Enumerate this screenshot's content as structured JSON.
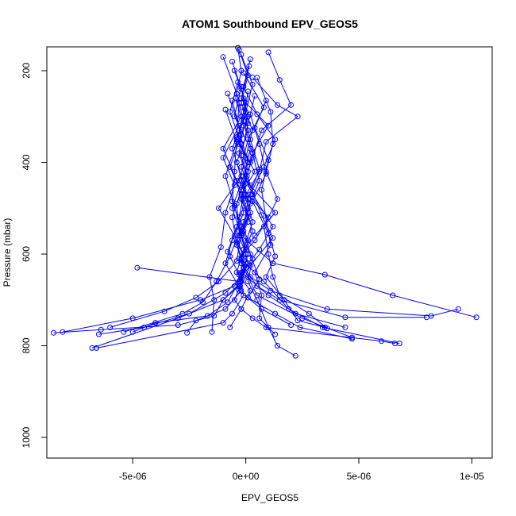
{
  "chart_data": {
    "type": "line",
    "title": "ATOM1 Southbound EPV_GEOS5",
    "xlabel": "EPV_GEOS5",
    "ylabel": "Pressure (mbar)",
    "xlim": [
      -8.8e-06,
      1.09e-05
    ],
    "ylim": [
      1045,
      148
    ],
    "y_reversed": true,
    "x_ticks": [
      {
        "value": -5e-06,
        "label": "-5e-06"
      },
      {
        "value": 0,
        "label": "0e+00"
      },
      {
        "value": 5e-06,
        "label": "5e-06"
      },
      {
        "value": 1e-05,
        "label": "1e-05"
      }
    ],
    "y_ticks": [
      {
        "value": 200,
        "label": "200"
      },
      {
        "value": 400,
        "label": "400"
      },
      {
        "value": 600,
        "label": "600"
      },
      {
        "value": 800,
        "label": "800"
      },
      {
        "value": 1000,
        "label": "1000"
      }
    ],
    "series_color": "#0000ff",
    "marker": "open-circle",
    "series": [
      {
        "x": [
          -3.5e-07,
          -2e-07,
          -4.5e-07,
          -1e-07,
          -3e-07,
          5e-08,
          -2e-07,
          1e-07,
          -3e-07,
          0,
          -1.5e-07,
          -2.5e-07,
          -5e-07,
          -2e-07,
          3e-07,
          9e-07,
          6e-06,
          6.6e-06
        ],
        "y": [
          150,
          200,
          260,
          320,
          380,
          430,
          480,
          520,
          560,
          600,
          640,
          670,
          700,
          720,
          740,
          760,
          790,
          795
        ]
      },
      {
        "x": [
          -3e-07,
          1e-07,
          -2e-07,
          3e-07,
          0,
          -3e-07,
          2e-07,
          -1e-07,
          -4e-07,
          1e-07,
          -2e-07,
          -1e-06,
          -3e-06,
          -6.8e-06
        ],
        "y": [
          155,
          210,
          270,
          330,
          390,
          440,
          490,
          530,
          575,
          620,
          660,
          700,
          740,
          805
        ]
      },
      {
        "x": [
          1e-06,
          1.5e-06,
          2e-06,
          7e-07,
          3e-07,
          -1e-07,
          2e-07,
          -2e-07,
          1.2e-06,
          3.5e-06,
          6.5e-06,
          1.02e-05
        ],
        "y": [
          160,
          220,
          275,
          330,
          390,
          450,
          510,
          560,
          620,
          645,
          690,
          738
        ]
      },
      {
        "x": [
          -2e-07,
          3e-07,
          0,
          -4e-07,
          2e-07,
          -1e-07,
          1e-06,
          4e-07,
          -3e-07,
          2e-07,
          1.1e-06,
          3.6e-06,
          8.2e-06,
          9.4e-06
        ],
        "y": [
          165,
          230,
          290,
          350,
          400,
          460,
          520,
          570,
          610,
          650,
          680,
          720,
          735,
          720
        ]
      },
      {
        "x": [
          -6e-07,
          -2e-07,
          1e-07,
          -3e-07,
          4e-07,
          -2e-07,
          1e-07,
          -4e-07,
          -1e-07,
          -5e-07,
          -2e-06,
          -5e-06,
          -8.1e-06
        ],
        "y": [
          180,
          240,
          300,
          360,
          420,
          470,
          530,
          580,
          630,
          670,
          700,
          740,
          770
        ]
      },
      {
        "x": [
          2e-07,
          -1e-07,
          5e-07,
          1.3e-06,
          8e-07,
          2e-07,
          -3e-07,
          1e-07,
          -2e-07,
          5e-07,
          1.5e-06,
          4.4e-06,
          8e-06
        ],
        "y": [
          175,
          235,
          295,
          350,
          410,
          470,
          520,
          570,
          620,
          670,
          700,
          738,
          738
        ]
      },
      {
        "x": [
          -1e-06,
          -4e-07,
          -1e-07,
          -6e-07,
          -2e-07,
          -1.2e-06,
          -5e-07,
          -1e-07,
          -2.5e-07,
          -4.8e-06
        ],
        "y": [
          170,
          250,
          310,
          370,
          430,
          500,
          560,
          600,
          660,
          630
        ]
      },
      {
        "x": [
          1.5e-07,
          -2e-07,
          1e-06,
          3e-07,
          0,
          1.3e-06,
          4e-07,
          -3e-07,
          1e-07,
          5e-07,
          2.5e-06,
          4.7e-06
        ],
        "y": [
          190,
          260,
          320,
          380,
          440,
          510,
          560,
          610,
          650,
          690,
          740,
          782
        ]
      },
      {
        "x": [
          -5e-07,
          0,
          -3e-07,
          1e-07,
          -2e-07,
          -6e-07,
          -4e-07,
          0,
          -3e-07,
          -1e-06,
          -1.4e-06,
          -3e-06,
          -6.4e-06,
          -8.5e-06
        ],
        "y": [
          200,
          270,
          330,
          400,
          460,
          520,
          580,
          630,
          670,
          700,
          735,
          755,
          765,
          772
        ]
      },
      {
        "x": [
          -1e-07,
          8e-07,
          1e-07,
          -2e-07,
          3e-07,
          1.2e-06,
          6e-07,
          -2e-07,
          1e-06,
          2.2e-06,
          4.4e-06
        ],
        "y": [
          205,
          280,
          350,
          410,
          470,
          540,
          590,
          640,
          690,
          730,
          760
        ]
      },
      {
        "x": [
          3e-07,
          1.4e-06,
          2.3e-06,
          9e-07,
          6e-07,
          -1e-07,
          3e-07,
          -2e-07,
          8e-07,
          1.9e-06,
          3.4e-06,
          6.8e-06
        ],
        "y": [
          215,
          275,
          300,
          355,
          420,
          480,
          550,
          610,
          660,
          720,
          760,
          795
        ]
      },
      {
        "x": [
          -3.5e-07,
          -7e-07,
          -2e-07,
          1e-07,
          -4e-07,
          -3e-07,
          1e-07,
          -2e-07,
          -9e-07,
          -2.5e-06,
          -4.5e-06,
          -6.5e-06
        ],
        "y": [
          225,
          290,
          360,
          420,
          490,
          550,
          600,
          650,
          685,
          730,
          760,
          775
        ]
      },
      {
        "x": [
          -2e-07,
          -5e-07,
          2e-07,
          -1e-07,
          -6e-07,
          -2e-07,
          1e-07,
          -3e-07,
          -8e-07,
          -1.7e-06,
          -4e-06,
          -5e-06
        ],
        "y": [
          235,
          300,
          370,
          430,
          500,
          560,
          620,
          660,
          705,
          735,
          750,
          770
        ]
      },
      {
        "x": [
          1e-07,
          -1e-07,
          3e-07,
          6e-07,
          1e-07,
          -2e-07,
          3e-07,
          1e-07,
          5e-07,
          1e-06,
          1.4e-06,
          2.2e-06
        ],
        "y": [
          245,
          310,
          380,
          440,
          500,
          560,
          610,
          660,
          700,
          760,
          800,
          822
        ]
      },
      {
        "x": [
          -8e-07,
          -3e-07,
          -1e-06,
          -5e-07,
          -9e-07,
          -1.1e-06,
          -1.6e-06,
          -1.4e-06,
          -1.5e-06
        ],
        "y": [
          250,
          320,
          390,
          450,
          510,
          585,
          650,
          700,
          770
        ]
      },
      {
        "x": [
          4e-07,
          1e-07,
          -2e-07,
          2e-07,
          7e-07,
          1.2e-06,
          2e-07,
          -3e-07,
          7e-07,
          2e-06
        ],
        "y": [
          255,
          315,
          385,
          450,
          515,
          565,
          625,
          680,
          720,
          755
        ]
      },
      {
        "x": [
          -1e-07,
          1e-07,
          -4e-07,
          0,
          3e-07,
          -1e-07,
          -4e-07,
          2e-07,
          -2e-07,
          -7e-07
        ],
        "y": [
          260,
          330,
          400,
          470,
          530,
          590,
          640,
          680,
          720,
          760
        ]
      },
      {
        "x": [
          -6e-07,
          -2e-07,
          -7e-07,
          -1e-07,
          -4e-07,
          -8e-07,
          -3e-07,
          -1e-07,
          -6e-07,
          -1e-06,
          -6.6e-06
        ],
        "y": [
          265,
          340,
          410,
          475,
          540,
          595,
          645,
          690,
          730,
          750,
          805
        ]
      },
      {
        "x": [
          5e-07,
          1.1e-06,
          1.2e-06,
          9e-07,
          1.4e-06,
          8e-07,
          1e-06,
          1.2e-06,
          1.5e-06,
          2.8e-06,
          3.6e-06
        ],
        "y": [
          215,
          290,
          360,
          420,
          480,
          540,
          600,
          650,
          690,
          730,
          762
        ]
      },
      {
        "x": [
          -3e-07,
          -4e-07,
          -5e-07,
          -6e-07,
          -2e-07,
          -7e-07,
          -1.3e-06,
          -1.9e-06,
          -2.8e-06,
          -5.4e-06
        ],
        "y": [
          270,
          345,
          420,
          485,
          540,
          605,
          660,
          705,
          730,
          770
        ]
      },
      {
        "x": [
          9e-07,
          4e-07,
          1e-06,
          7e-07,
          9e-07,
          1.1e-06,
          4e-07,
          7e-07,
          6e-07,
          1.3e-06
        ],
        "y": [
          265,
          325,
          395,
          460,
          525,
          580,
          640,
          690,
          740,
          775
        ]
      },
      {
        "x": [
          -1.5e-07,
          2e-07,
          6e-07,
          1e-07,
          -1e-07,
          2e-07,
          6e-07,
          1e-07,
          1.3e-06,
          2.4e-06,
          4.7e-06
        ],
        "y": [
          280,
          350,
          415,
          480,
          550,
          600,
          655,
          695,
          730,
          760,
          785
        ]
      },
      {
        "x": [
          -9e-07,
          -4e-07,
          -9e-07,
          -5e-07,
          -2e-07,
          -4e-07,
          -1.2e-06,
          -2.2e-06,
          -3.6e-06,
          -6e-06
        ],
        "y": [
          285,
          355,
          430,
          495,
          555,
          615,
          660,
          695,
          725,
          760
        ]
      },
      {
        "x": [
          2e-07,
          6e-07,
          9e-07,
          3e-07,
          1e-06,
          1.3e-06,
          9e-07,
          1.7e-06,
          2.3e-06,
          3.5e-06
        ],
        "y": [
          295,
          360,
          425,
          485,
          555,
          605,
          650,
          700,
          745,
          760
        ]
      },
      {
        "x": [
          -2e-07,
          -1e-06,
          -4e-07,
          -1e-07,
          -6e-07,
          -9e-07,
          -2e-07,
          -9e-07,
          -2.2e-06,
          -2.6e-06
        ],
        "y": [
          300,
          370,
          440,
          510,
          570,
          620,
          680,
          720,
          745,
          772
        ]
      }
    ]
  }
}
